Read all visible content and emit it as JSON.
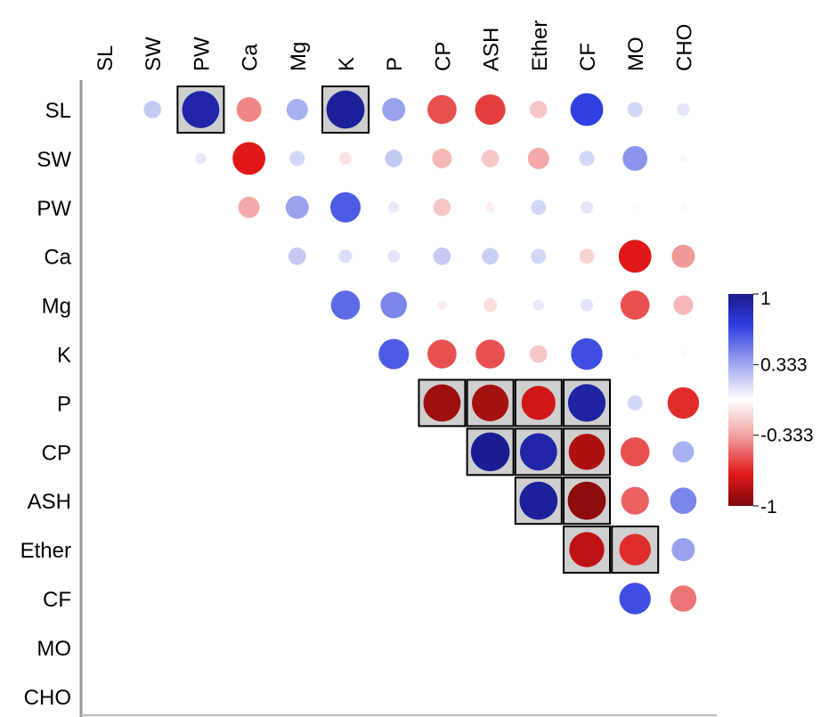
{
  "chart_data": {
    "type": "heatmap",
    "title": "",
    "variables": [
      "SL",
      "SW",
      "PW",
      "Ca",
      "Mg",
      "K",
      "P",
      "CP",
      "ASH",
      "Ether",
      "CF",
      "MO",
      "CHO"
    ],
    "value_range": [
      -1,
      1
    ],
    "colorbar_ticks": [
      "1",
      "0.333",
      "-0.333",
      "-1"
    ],
    "colorbar_ticks_values": [
      1,
      0.333,
      -0.333,
      -1
    ],
    "colors": {
      "positive": "#1a1aa6",
      "neutral": "#ffffff",
      "negative": "#7d0a0a"
    },
    "cells": [
      {
        "row": "SL",
        "col": "SW",
        "value": 0.2
      },
      {
        "row": "SL",
        "col": "PW",
        "value": 0.9,
        "highlighted": true
      },
      {
        "row": "SL",
        "col": "Ca",
        "value": -0.4
      },
      {
        "row": "SL",
        "col": "Mg",
        "value": 0.3
      },
      {
        "row": "SL",
        "col": "K",
        "value": 0.95,
        "highlighted": true
      },
      {
        "row": "SL",
        "col": "P",
        "value": 0.35
      },
      {
        "row": "SL",
        "col": "CP",
        "value": -0.55
      },
      {
        "row": "SL",
        "col": "ASH",
        "value": -0.6
      },
      {
        "row": "SL",
        "col": "Ether",
        "value": -0.2
      },
      {
        "row": "SL",
        "col": "CF",
        "value": 0.7
      },
      {
        "row": "SL",
        "col": "MO",
        "value": 0.15
      },
      {
        "row": "SL",
        "col": "CHO",
        "value": 0.1
      },
      {
        "row": "SW",
        "col": "PW",
        "value": 0.08
      },
      {
        "row": "SW",
        "col": "Ca",
        "value": -0.7
      },
      {
        "row": "SW",
        "col": "Mg",
        "value": 0.15
      },
      {
        "row": "SW",
        "col": "K",
        "value": -0.1
      },
      {
        "row": "SW",
        "col": "P",
        "value": 0.2
      },
      {
        "row": "SW",
        "col": "CP",
        "value": -0.25
      },
      {
        "row": "SW",
        "col": "ASH",
        "value": -0.2
      },
      {
        "row": "SW",
        "col": "Ether",
        "value": -0.3
      },
      {
        "row": "SW",
        "col": "CF",
        "value": 0.15
      },
      {
        "row": "SW",
        "col": "MO",
        "value": 0.4
      },
      {
        "row": "SW",
        "col": "CHO",
        "value": 0.03
      },
      {
        "row": "PW",
        "col": "Ca",
        "value": -0.3
      },
      {
        "row": "PW",
        "col": "Mg",
        "value": 0.35
      },
      {
        "row": "PW",
        "col": "K",
        "value": 0.6
      },
      {
        "row": "PW",
        "col": "P",
        "value": 0.08
      },
      {
        "row": "PW",
        "col": "CP",
        "value": -0.2
      },
      {
        "row": "PW",
        "col": "ASH",
        "value": -0.06
      },
      {
        "row": "PW",
        "col": "Ether",
        "value": 0.15
      },
      {
        "row": "PW",
        "col": "CF",
        "value": 0.1
      },
      {
        "row": "PW",
        "col": "MO",
        "value": 0.02
      },
      {
        "row": "PW",
        "col": "CHO",
        "value": 0.02
      },
      {
        "row": "Ca",
        "col": "Mg",
        "value": 0.2
      },
      {
        "row": "Ca",
        "col": "K",
        "value": 0.12
      },
      {
        "row": "Ca",
        "col": "P",
        "value": 0.1
      },
      {
        "row": "Ca",
        "col": "CP",
        "value": 0.2
      },
      {
        "row": "Ca",
        "col": "ASH",
        "value": 0.18
      },
      {
        "row": "Ca",
        "col": "Ether",
        "value": 0.15
      },
      {
        "row": "Ca",
        "col": "CF",
        "value": -0.15
      },
      {
        "row": "Ca",
        "col": "MO",
        "value": -0.7
      },
      {
        "row": "Ca",
        "col": "CHO",
        "value": -0.35
      },
      {
        "row": "Mg",
        "col": "K",
        "value": 0.55
      },
      {
        "row": "Mg",
        "col": "P",
        "value": 0.45
      },
      {
        "row": "Mg",
        "col": "CP",
        "value": -0.06
      },
      {
        "row": "Mg",
        "col": "ASH",
        "value": -0.12
      },
      {
        "row": "Mg",
        "col": "Ether",
        "value": 0.08
      },
      {
        "row": "Mg",
        "col": "CF",
        "value": 0.1
      },
      {
        "row": "Mg",
        "col": "MO",
        "value": -0.55
      },
      {
        "row": "Mg",
        "col": "CHO",
        "value": -0.25
      },
      {
        "row": "K",
        "col": "P",
        "value": 0.6
      },
      {
        "row": "K",
        "col": "CP",
        "value": -0.55
      },
      {
        "row": "K",
        "col": "ASH",
        "value": -0.55
      },
      {
        "row": "K",
        "col": "Ether",
        "value": -0.2
      },
      {
        "row": "K",
        "col": "CF",
        "value": 0.65
      },
      {
        "row": "K",
        "col": "MO",
        "value": 0.01
      },
      {
        "row": "K",
        "col": "CHO",
        "value": 0.02
      },
      {
        "row": "P",
        "col": "CP",
        "value": -0.9,
        "highlighted": true
      },
      {
        "row": "P",
        "col": "ASH",
        "value": -0.88,
        "highlighted": true
      },
      {
        "row": "P",
        "col": "Ether",
        "value": -0.75,
        "highlighted": true
      },
      {
        "row": "P",
        "col": "CF",
        "value": 0.92,
        "highlighted": true
      },
      {
        "row": "P",
        "col": "MO",
        "value": 0.15
      },
      {
        "row": "P",
        "col": "CHO",
        "value": -0.65
      },
      {
        "row": "CP",
        "col": "ASH",
        "value": 0.98,
        "highlighted": true
      },
      {
        "row": "CP",
        "col": "Ether",
        "value": 0.9,
        "highlighted": true
      },
      {
        "row": "CP",
        "col": "CF",
        "value": -0.85,
        "highlighted": true
      },
      {
        "row": "CP",
        "col": "MO",
        "value": -0.55
      },
      {
        "row": "CP",
        "col": "CHO",
        "value": 0.3
      },
      {
        "row": "ASH",
        "col": "Ether",
        "value": 0.95,
        "highlighted": true
      },
      {
        "row": "ASH",
        "col": "CF",
        "value": -0.95,
        "highlighted": true
      },
      {
        "row": "ASH",
        "col": "MO",
        "value": -0.5
      },
      {
        "row": "ASH",
        "col": "CHO",
        "value": 0.45
      },
      {
        "row": "Ether",
        "col": "CF",
        "value": -0.8,
        "highlighted": true
      },
      {
        "row": "Ether",
        "col": "MO",
        "value": -0.65,
        "highlighted": true
      },
      {
        "row": "Ether",
        "col": "CHO",
        "value": 0.35
      },
      {
        "row": "CF",
        "col": "MO",
        "value": 0.65
      },
      {
        "row": "CF",
        "col": "CHO",
        "value": -0.45
      }
    ]
  }
}
